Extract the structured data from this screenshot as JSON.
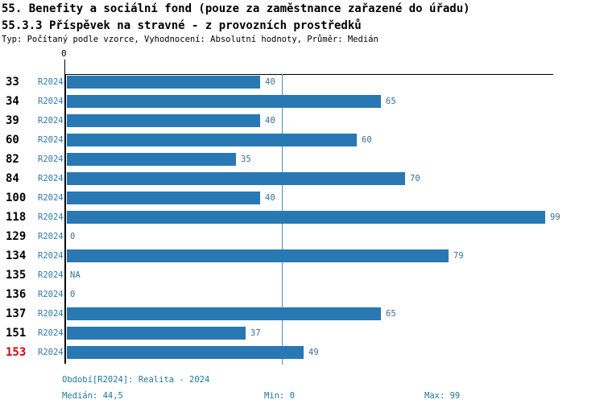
{
  "title": "55. Benefity a sociální fond (pouze za zaměstnance zařazené do úřadu)",
  "subtitle": "55.3.3 Příspěvek na stravné - z provozních prostředků",
  "meta": "Typ: Počítaný podle vzorce, Vyhodnocení: Absolutní hodnoty, Průměr: Medián",
  "chart_data": {
    "type": "bar",
    "orientation": "horizontal",
    "series_label": "R2024",
    "categories": [
      "33",
      "34",
      "39",
      "60",
      "82",
      "84",
      "100",
      "118",
      "129",
      "134",
      "135",
      "136",
      "137",
      "151",
      "153"
    ],
    "values": [
      40,
      65,
      40,
      60,
      35,
      70,
      40,
      99,
      0,
      79,
      null,
      0,
      65,
      37,
      49
    ],
    "value_labels": [
      "40",
      "65",
      "40",
      "60",
      "35",
      "70",
      "40",
      "99",
      "0",
      "79",
      "NA",
      "0",
      "65",
      "37",
      "49"
    ],
    "highlighted_category": "153",
    "xlim": [
      0,
      100
    ],
    "x_tick_labels": [
      "0"
    ],
    "median_line_value": 44.5,
    "legend_position": "none",
    "grid": "median-line-only"
  },
  "footer": {
    "period": "Období[R2024]: Realita - 2024",
    "median": "Medián: 44,5",
    "min": "Min: 0",
    "max": "Max: 99"
  },
  "colors": {
    "bar": "#2878b4",
    "series_label": "#2d79b3",
    "value_label": "#3a7096",
    "footer_text": "#1d7a9c",
    "highlight": "#d8000c",
    "median_line": "#4a90c2",
    "axis": "#000000",
    "text": "#000000"
  }
}
